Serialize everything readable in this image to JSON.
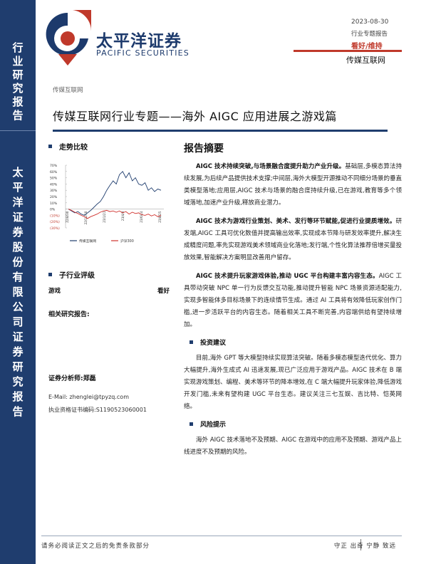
{
  "sidebar": {
    "top_label": "行业研究报告",
    "middle_label": "太平洋证券股份有限公司证券研究报告"
  },
  "brand": {
    "name_cn": "太平洋证券",
    "name_en": "PACIFIC SECURITIES"
  },
  "header": {
    "date": "2023-08-30",
    "report_type": "行业专题报告",
    "rating": "看好/维持",
    "industry": "传媒互联网"
  },
  "breadcrumb": "传媒互联网",
  "title": "传媒互联网行业专题——海外 AIGC 应用进展之游戏篇",
  "left": {
    "trend_heading": "走势比较",
    "rating_heading": "子行业评级",
    "rating_item": {
      "name": "游戏",
      "value": "看好"
    },
    "related_heading": "相关研究报告:",
    "analyst": "证券分析师:郑磊",
    "email": "E-Mail: zhenglei@tpyzq.com",
    "license": "执业资格证书编码:S1190523060001"
  },
  "chart_data": {
    "type": "line",
    "y_ticks": [
      "70%",
      "60%",
      "50%",
      "40%",
      "30%",
      "20%",
      "10%",
      "0%",
      "(10%)",
      "(20%)",
      "(30%)"
    ],
    "ylim": [
      -30,
      70
    ],
    "x_ticks": [
      "22/8/30",
      "22/11/10",
      "23/1/21",
      "23/4/3",
      "23/6/14",
      "23/8/25"
    ],
    "series": [
      {
        "name": "传媒互联网",
        "color": "#1f3d6e",
        "values": [
          0,
          -3,
          -6,
          -4,
          -8,
          -10,
          -6,
          -2,
          3,
          8,
          12,
          20,
          30,
          38,
          45,
          40,
          55,
          60,
          50,
          58,
          45,
          50,
          40,
          38,
          42,
          30,
          34,
          28,
          32,
          30
        ]
      },
      {
        "name": "沪深300",
        "color": "#d0312d",
        "values": [
          0,
          -2,
          -5,
          -7,
          -10,
          -12,
          -15,
          -12,
          -10,
          -8,
          -5,
          -3,
          -2,
          -4,
          -3,
          -5,
          -3,
          -6,
          -4,
          -8,
          -5,
          -7,
          -6,
          -9,
          -10,
          -8,
          -11,
          -9,
          -12,
          -10
        ]
      }
    ]
  },
  "summary": {
    "heading": "报告摘要",
    "p1_bold": "AIGC 技术持续突破,与场景融合度提升助力产业升级。",
    "p1_rest": "基础层,多模态算法持续发展,为后续产品提供技术支撑;中间层,海外大模型开源推动不同细分场景的垂直类模型落地;应用层,AIGC 技术与场景的融合度持续升级,已在游戏,教育等多个领域落地,加速产业升级,释放商业潜力。",
    "p2_bold": "AIGC 技术为游戏行业策划、美术、发行等环节赋能,促进行业提质增效。",
    "p2_rest": "研发端,AIGC 工具可优化数值并提高输出效率,实现成本节降与研发效率提升,解决生成精度问题,率先实现游戏美术领域商业化落地;发行端,个性化算法推荐倍增买量投放效果,智能解决方案明显改善用户留存。",
    "p3_bold": "AIGC 技术提升玩家游戏体验,推动 UGC 平台构建丰富内容生态。",
    "p3_rest": "AIGC 工具带动突破 NPC 单一行为反馈交互功能,推动提升智能 NPC 场景资源适配能力,实现多智能体多目标场景下的连续情节生成。通过 AI 工具将有效降低玩家创作门槛,进一步活跃平台的内容生态。随着相关工具不断完善,内容端供给有望持续增加。",
    "invest_heading": "投资建议",
    "invest_text": "目前,海外 GPT 等大模型持续实现算法突破。随着多模态模型迭代优化、算力大幅提升,海外生成式 AI 迅速发展,现已广泛应用于游戏产品。AIGC 技术在 B 端实现游戏策划、编程、美术等环节的降本增效,在 C 端大幅提升玩家体验,降低游戏开发门槛,未来有望构建 UGC 平台生态。建议关注三七互娱、吉比特、恺英网络。",
    "risk_heading": "风险提示",
    "risk_text": "海外 AIGC 技术落地不及预期、AIGC 在游戏中的应用不及预期、游戏产品上线进度不及预期的风险。"
  },
  "footer": {
    "disclaimer": "请务必阅读正文之后的免责条款部分",
    "motto": "守正 出奇 宁静 致远"
  }
}
